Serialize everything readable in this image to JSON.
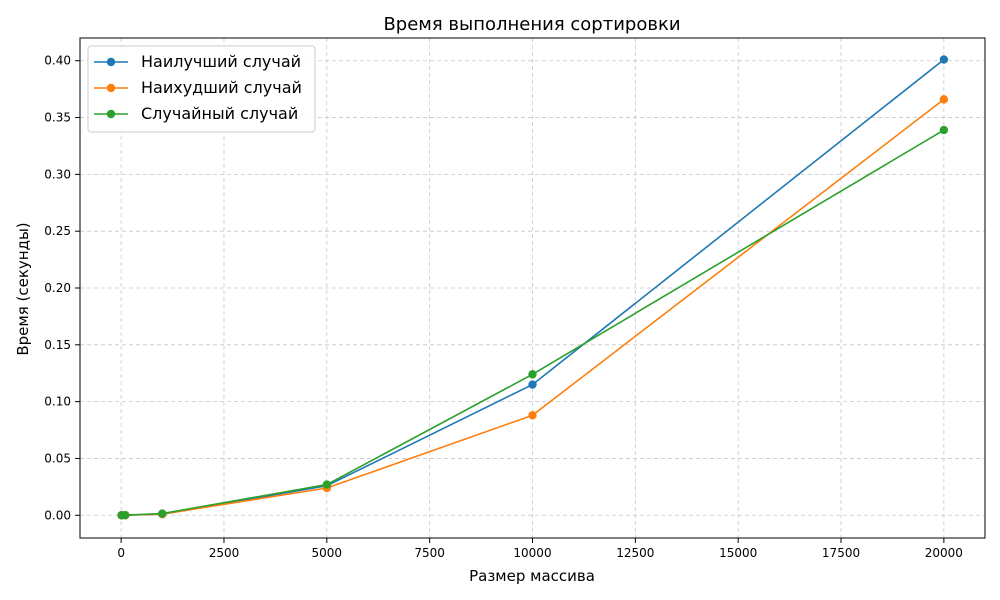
{
  "chart_data": {
    "type": "line",
    "title": "Время выполнения сортировки",
    "xlabel": "Размер массива",
    "ylabel": "Время (секунды)",
    "xlim": [
      -1000,
      21000
    ],
    "ylim": [
      -0.02,
      0.42
    ],
    "x_ticks": [
      0,
      2500,
      5000,
      7500,
      10000,
      12500,
      15000,
      17500,
      20000
    ],
    "y_ticks": [
      0.0,
      0.05,
      0.1,
      0.15,
      0.2,
      0.25,
      0.3,
      0.35,
      0.4
    ],
    "x_tick_labels": [
      "0",
      "2500",
      "5000",
      "7500",
      "10000",
      "12500",
      "15000",
      "17500",
      "20000"
    ],
    "y_tick_labels": [
      "0.00",
      "0.05",
      "0.10",
      "0.15",
      "0.20",
      "0.25",
      "0.30",
      "0.35",
      "0.40"
    ],
    "grid": true,
    "legend_position": "top-left",
    "x": [
      10,
      100,
      1000,
      5000,
      10000,
      20000
    ],
    "series": [
      {
        "name": "Наилучший случай",
        "color": "#1f77b4",
        "values": [
          0.0,
          0.0001,
          0.001,
          0.026,
          0.115,
          0.401
        ]
      },
      {
        "name": "Наихудший случай",
        "color": "#ff7f0e",
        "values": [
          0.0,
          0.0001,
          0.001,
          0.024,
          0.088,
          0.366
        ]
      },
      {
        "name": "Случайный случай",
        "color": "#2ca02c",
        "values": [
          0.0,
          0.0001,
          0.0015,
          0.027,
          0.124,
          0.339
        ]
      }
    ]
  }
}
